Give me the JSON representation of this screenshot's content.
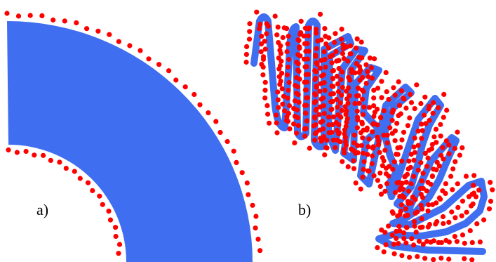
{
  "colors": {
    "background": "#ffffff",
    "shape": "#3f6ff0",
    "dots": "#ff0000",
    "text": "#000000"
  },
  "panels": [
    {
      "label": "a)",
      "shape": "smooth-annular-sector-with-boundary-dots"
    },
    {
      "label": "b)",
      "shape": "folded-serpentine-band-with-boundary-dots"
    }
  ]
}
